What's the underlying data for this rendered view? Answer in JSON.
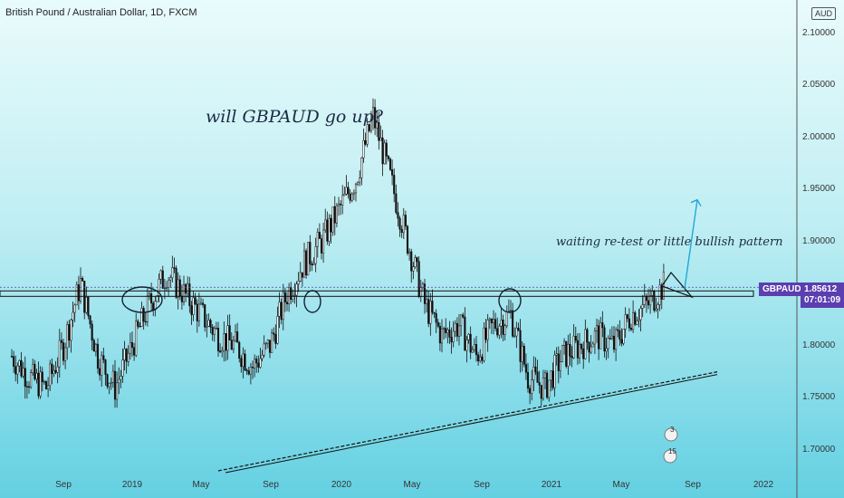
{
  "header": {
    "title": "British Pound / Australian Dollar, 1D, FXCM"
  },
  "currency_label": "AUD",
  "annotations": {
    "question": "will GBPAUD go up?",
    "note": "waiting re-test or little bullish pattern"
  },
  "symbol_badge": "GBPAUD",
  "price_badge": "1.85612",
  "countdown": "07:01:09",
  "events": {
    "count_a": "3",
    "count_b": "15"
  },
  "colors": {
    "bg_top": "#e9fbfc",
    "bg_bottom": "#63d0e2",
    "candle": "#111111",
    "badge": "#5b3fb0",
    "accent_arrow": "#22a7d8"
  },
  "chart_data": {
    "type": "candlestick",
    "title": "British Pound / Australian Dollar, 1D, FXCM",
    "ylabel": "AUD",
    "ylim": [
      1.68,
      2.11
    ],
    "y_ticks": [
      "2.10000",
      "2.05000",
      "2.00000",
      "1.95000",
      "1.90000",
      "1.85612",
      "1.80000",
      "1.75000",
      "1.70000"
    ],
    "x_ticks": [
      "Sep",
      "2019",
      "May",
      "Sep",
      "2020",
      "May",
      "Sep",
      "2021",
      "May",
      "Sep",
      "2022"
    ],
    "x_tick_dates": [
      "2018-09",
      "2019-01",
      "2019-05",
      "2019-09",
      "2020-01",
      "2020-05",
      "2020-09",
      "2021-01",
      "2021-05",
      "2021-09",
      "2022-01"
    ],
    "last_price": 1.85612,
    "grid": false,
    "series": [
      {
        "values": [
          {
            "date": "2018-06",
            "price": 1.79
          },
          {
            "date": "2018-07",
            "price": 1.77
          },
          {
            "date": "2018-08",
            "price": 1.76
          },
          {
            "date": "2018-09",
            "price": 1.8
          },
          {
            "date": "2018-10",
            "price": 1.86
          },
          {
            "date": "2018-11",
            "price": 1.79
          },
          {
            "date": "2018-12",
            "price": 1.76
          },
          {
            "date": "2019-01",
            "price": 1.8
          },
          {
            "date": "2019-02",
            "price": 1.84
          },
          {
            "date": "2019-03",
            "price": 1.87
          },
          {
            "date": "2019-04",
            "price": 1.85
          },
          {
            "date": "2019-05",
            "price": 1.83
          },
          {
            "date": "2019-06",
            "price": 1.81
          },
          {
            "date": "2019-07",
            "price": 1.8
          },
          {
            "date": "2019-08",
            "price": 1.78
          },
          {
            "date": "2019-09",
            "price": 1.8
          },
          {
            "date": "2019-10",
            "price": 1.85
          },
          {
            "date": "2019-11",
            "price": 1.88
          },
          {
            "date": "2019-12",
            "price": 1.9
          },
          {
            "date": "2020-01",
            "price": 1.93
          },
          {
            "date": "2020-02",
            "price": 1.96
          },
          {
            "date": "2020-03",
            "price": 2.02
          },
          {
            "date": "2020-04",
            "price": 1.96
          },
          {
            "date": "2020-05",
            "price": 1.9
          },
          {
            "date": "2020-06",
            "price": 1.84
          },
          {
            "date": "2020-07",
            "price": 1.81
          },
          {
            "date": "2020-08",
            "price": 1.82
          },
          {
            "date": "2020-09",
            "price": 1.79
          },
          {
            "date": "2020-10",
            "price": 1.82
          },
          {
            "date": "2020-11",
            "price": 1.83
          },
          {
            "date": "2020-12",
            "price": 1.77
          },
          {
            "date": "2021-01",
            "price": 1.76
          },
          {
            "date": "2021-02",
            "price": 1.79
          },
          {
            "date": "2021-03",
            "price": 1.8
          },
          {
            "date": "2021-04",
            "price": 1.81
          },
          {
            "date": "2021-05",
            "price": 1.8
          },
          {
            "date": "2021-06",
            "price": 1.83
          },
          {
            "date": "2021-07",
            "price": 1.84
          },
          {
            "date": "2021-08",
            "price": 1.86
          }
        ]
      }
    ],
    "resistance_level": 1.85,
    "trendline": [
      {
        "date": "2019-06",
        "price": 1.68
      },
      {
        "date": "2021-11",
        "price": 1.775
      }
    ],
    "target_arrow": [
      {
        "date": "2021-08",
        "price": 1.855
      },
      {
        "date": "2021-09",
        "price": 1.94
      }
    ]
  }
}
